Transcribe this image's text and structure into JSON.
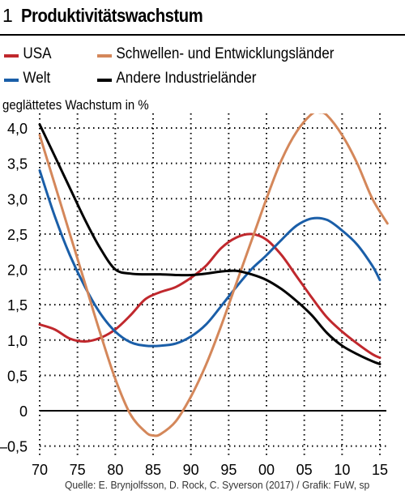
{
  "title": {
    "number": "1",
    "text": "Produktivitätswachstum"
  },
  "source": "Quelle: E. Brynjolfsson, D. Rock, C. Syverson (2017) / Grafik: FuW, sp",
  "colors": {
    "usa": "#c0282d",
    "welt": "#1a5ea8",
    "schwellen": "#d4875a",
    "industrie": "#000000"
  },
  "chart_data": {
    "type": "line",
    "title": "Produktivitätswachstum",
    "ylabel": "geglättetes Wachstum in %",
    "xlabel": "",
    "xlim": [
      1970,
      2016
    ],
    "ylim": [
      -0.6,
      4.2
    ],
    "x_ticks": [
      1970,
      1975,
      1980,
      1985,
      1990,
      1995,
      2000,
      2005,
      2010,
      2015
    ],
    "x_tick_labels": [
      "70",
      "75",
      "80",
      "85",
      "90",
      "95",
      "00",
      "05",
      "10",
      "15"
    ],
    "y_ticks": [
      -0.5,
      0,
      0.5,
      1.0,
      1.5,
      2.0,
      2.5,
      3.0,
      3.5,
      4.0
    ],
    "y_tick_labels": [
      "–0,5",
      "0",
      "0,5",
      "1,0",
      "1,5",
      "2,0",
      "2,5",
      "3,0",
      "3,5",
      "4,0"
    ],
    "grid": "dotted",
    "legend_position": "top",
    "series": [
      {
        "key": "usa",
        "name": "USA",
        "color": "#c0282d",
        "x": [
          1970,
          1972,
          1974,
          1976,
          1978,
          1980,
          1982,
          1984,
          1986,
          1988,
          1990,
          1992,
          1994,
          1996,
          1998,
          2000,
          2002,
          2004,
          2006,
          2008,
          2010,
          2012,
          2014,
          2015
        ],
        "y": [
          1.22,
          1.15,
          1.02,
          0.98,
          1.03,
          1.15,
          1.35,
          1.58,
          1.68,
          1.75,
          1.88,
          2.05,
          2.3,
          2.45,
          2.5,
          2.42,
          2.2,
          1.9,
          1.6,
          1.32,
          1.12,
          0.95,
          0.8,
          0.75
        ]
      },
      {
        "key": "welt",
        "name": "Welt",
        "color": "#1a5ea8",
        "x": [
          1970,
          1972,
          1974,
          1976,
          1978,
          1980,
          1982,
          1984,
          1986,
          1988,
          1990,
          1992,
          1994,
          1996,
          1998,
          2000,
          2002,
          2004,
          2006,
          2008,
          2010,
          2012,
          2014,
          2015
        ],
        "y": [
          3.4,
          2.75,
          2.2,
          1.75,
          1.38,
          1.12,
          0.97,
          0.92,
          0.92,
          0.95,
          1.05,
          1.22,
          1.48,
          1.75,
          2.0,
          2.2,
          2.42,
          2.62,
          2.72,
          2.7,
          2.55,
          2.35,
          2.05,
          1.85
        ]
      },
      {
        "key": "schwellen",
        "name": "Schwellen- und Entwicklungsländer",
        "color": "#d4875a",
        "x": [
          1970,
          1972,
          1974,
          1976,
          1978,
          1980,
          1982,
          1984,
          1985,
          1986,
          1988,
          1990,
          1992,
          1994,
          1996,
          1998,
          2000,
          2002,
          2004,
          2006,
          2007,
          2008,
          2010,
          2012,
          2014,
          2016
        ],
        "y": [
          3.9,
          3.2,
          2.5,
          1.8,
          1.1,
          0.45,
          -0.05,
          -0.3,
          -0.35,
          -0.33,
          -0.15,
          0.2,
          0.65,
          1.2,
          1.8,
          2.4,
          3.0,
          3.55,
          3.95,
          4.2,
          4.22,
          4.18,
          3.9,
          3.5,
          3.0,
          2.65
        ]
      },
      {
        "key": "industrie",
        "name": "Andere Industrieländer",
        "color": "#000000",
        "x": [
          1970,
          1972,
          1974,
          1976,
          1978,
          1980,
          1982,
          1984,
          1986,
          1988,
          1990,
          1992,
          1994,
          1996,
          1998,
          2000,
          2002,
          2004,
          2006,
          2008,
          2010,
          2012,
          2014,
          2015
        ],
        "y": [
          4.05,
          3.6,
          3.15,
          2.7,
          2.3,
          2.0,
          1.94,
          1.93,
          1.93,
          1.92,
          1.92,
          1.94,
          1.97,
          1.98,
          1.93,
          1.85,
          1.72,
          1.55,
          1.35,
          1.1,
          0.92,
          0.8,
          0.7,
          0.66
        ]
      }
    ]
  }
}
